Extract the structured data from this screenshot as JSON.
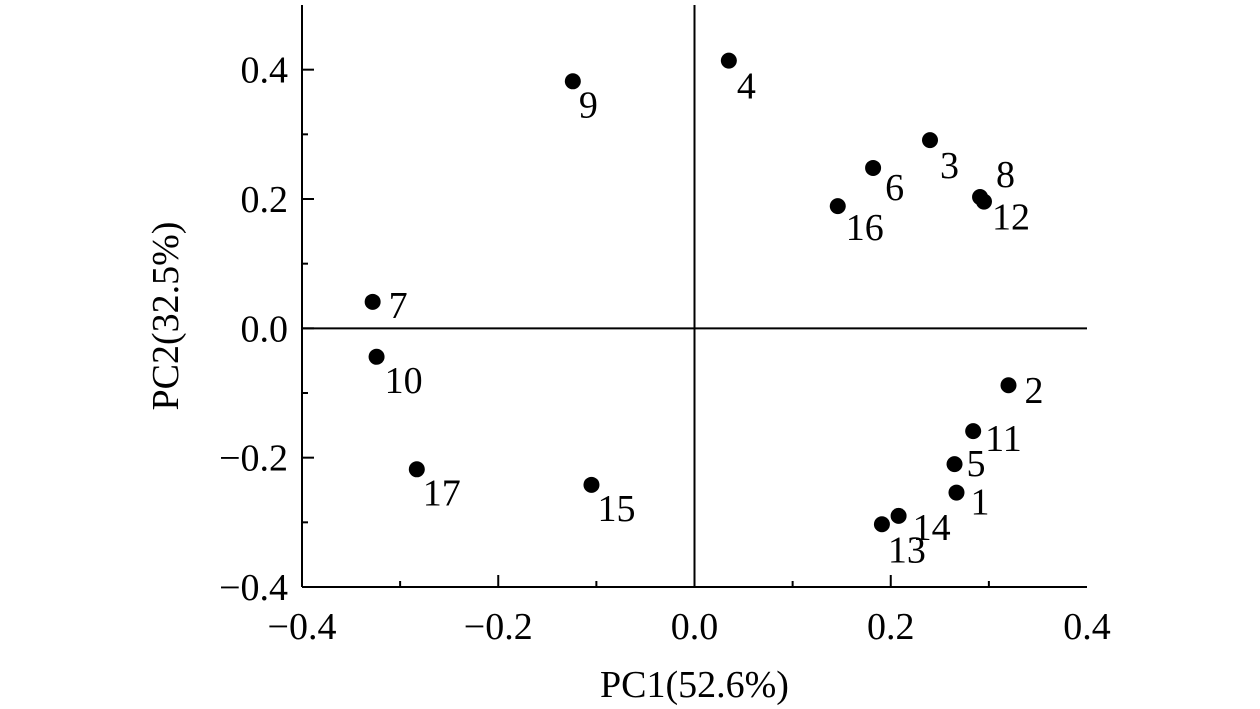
{
  "chart_data": {
    "type": "scatter",
    "title": "",
    "xlabel": "PC1(52.6%)",
    "ylabel": "PC2(32.5%)",
    "xlim": [
      -0.4,
      0.4
    ],
    "ylim": [
      -0.4,
      0.5
    ],
    "x_ticks": [
      "−0.4",
      "−0.2",
      "0.0",
      "0.2",
      "0.4"
    ],
    "x_tick_values": [
      -0.4,
      -0.2,
      0.0,
      0.2,
      0.4
    ],
    "y_ticks": [
      "−0.4",
      "−0.2",
      "0.0",
      "0.2",
      "0.4"
    ],
    "y_tick_values": [
      -0.4,
      -0.2,
      0.0,
      0.2,
      0.4
    ],
    "grid": false,
    "reference_lines": [
      "x=0",
      "y=0"
    ],
    "marker_color": "#000000",
    "points": [
      {
        "label": "1",
        "x": 0.267,
        "y": -0.254
      },
      {
        "label": "2",
        "x": 0.32,
        "y": -0.088
      },
      {
        "label": "3",
        "x": 0.24,
        "y": 0.291
      },
      {
        "label": "4",
        "x": 0.035,
        "y": 0.414
      },
      {
        "label": "5",
        "x": 0.265,
        "y": -0.21
      },
      {
        "label": "6",
        "x": 0.182,
        "y": 0.248
      },
      {
        "label": "7",
        "x": -0.328,
        "y": 0.041
      },
      {
        "label": "8",
        "x": 0.291,
        "y": 0.203
      },
      {
        "label": "9",
        "x": -0.124,
        "y": 0.382
      },
      {
        "label": "10",
        "x": -0.324,
        "y": -0.044
      },
      {
        "label": "11",
        "x": 0.284,
        "y": -0.159
      },
      {
        "label": "12",
        "x": 0.295,
        "y": 0.196
      },
      {
        "label": "13",
        "x": 0.191,
        "y": -0.303
      },
      {
        "label": "14",
        "x": 0.208,
        "y": -0.29
      },
      {
        "label": "15",
        "x": -0.105,
        "y": -0.242
      },
      {
        "label": "16",
        "x": 0.146,
        "y": 0.189
      },
      {
        "label": "17",
        "x": -0.283,
        "y": -0.218
      }
    ]
  }
}
